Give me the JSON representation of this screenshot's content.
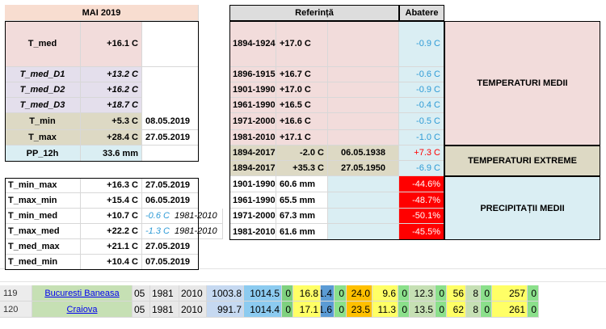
{
  "left": {
    "header": "MAI 2019",
    "rows": [
      {
        "label": "T_med",
        "value": "+16.1 C",
        "extra": ""
      },
      {
        "label": "T_med_D1",
        "value": "+13.2 C",
        "extra": ""
      },
      {
        "label": "T_med_D2",
        "value": "+16.2 C",
        "extra": ""
      },
      {
        "label": "T_med_D3",
        "value": "+18.7 C",
        "extra": ""
      },
      {
        "label": "T_min",
        "value": "+5.3 C",
        "extra": "08.05.2019"
      },
      {
        "label": "T_max",
        "value": "+28.4 C",
        "extra": "27.05.2019"
      },
      {
        "label": "PP_12h",
        "value": "33.6 mm",
        "extra": ""
      }
    ]
  },
  "left2": {
    "rows": [
      {
        "label": "T_min_max",
        "value": "+16.3 C",
        "extra": "27.05.2019",
        "extra2": ""
      },
      {
        "label": "T_max_min",
        "value": "+15.4 C",
        "extra": "06.05.2019",
        "extra2": ""
      },
      {
        "label": "T_min_med",
        "value": "+10.7 C",
        "extra": "-0.6 C",
        "extra2": "1981-2010"
      },
      {
        "label": "T_max_med",
        "value": "+22.2 C",
        "extra": "-1.3 C",
        "extra2": "1981-2010"
      },
      {
        "label": "T_med_max",
        "value": "+21.1 C",
        "extra": "27.05.2019",
        "extra2": ""
      },
      {
        "label": "T_med_min",
        "value": "+10.4 C",
        "extra": "07.05.2019",
        "extra2": ""
      }
    ]
  },
  "right": {
    "header_ref": "Referință",
    "header_abat": "Abatere",
    "rows_medii": [
      {
        "period": "1894-1924",
        "value": "+17.0 C",
        "abat": "-0.9 C"
      },
      {
        "period": "1896-1915",
        "value": "+16.7 C",
        "abat": "-0.6 C"
      },
      {
        "period": "1901-1990",
        "value": "+17.0 C",
        "abat": "-0.9 C"
      },
      {
        "period": "1961-1990",
        "value": "+16.5 C",
        "abat": "-0.4 C"
      },
      {
        "period": "1971-2000",
        "value": "+16.6 C",
        "abat": "-0.5 C"
      },
      {
        "period": "1981-2010",
        "value": "+17.1 C",
        "abat": "-1.0 C"
      }
    ],
    "rows_extreme": [
      {
        "period": "1894-2017",
        "value": "-2.0 C",
        "date": "06.05.1938",
        "abat": "+7.3 C"
      },
      {
        "period": "1894-2017",
        "value": "+35.3 C",
        "date": "27.05.1950",
        "abat": "-6.9 C"
      }
    ],
    "rows_precip": [
      {
        "period": "1901-1990",
        "value": "60.6 mm",
        "abat": "-44.6%"
      },
      {
        "period": "1961-1990",
        "value": "65.5 mm",
        "abat": "-48.7%"
      },
      {
        "period": "1971-2000",
        "value": "67.3 mm",
        "abat": "-50.1%"
      },
      {
        "period": "1981-2010",
        "value": "61.6 mm",
        "abat": "-45.5%"
      }
    ],
    "label_medii": "TEMPERATURI MEDII",
    "label_extreme": "TEMPERATURI EXTREME",
    "label_precip": "PRECIPITAȚII MEDII"
  },
  "bottom": {
    "rows": [
      {
        "num": "119",
        "station": "Bucuresti Baneasa",
        "cols": [
          "05",
          "1981",
          "2010",
          "1003.8",
          "1014.5",
          "0",
          "16.8",
          "1.4",
          "0",
          "24.0",
          "9.6",
          "0",
          "12.3",
          "0",
          "56",
          "8",
          "0",
          "257",
          "0"
        ]
      },
      {
        "num": "120",
        "station": "Craiova",
        "cols": [
          "05",
          "1981",
          "2010",
          "991.7",
          "1014.4",
          "0",
          "17.1",
          "1.6",
          "0",
          "23.5",
          "11.3",
          "0",
          "13.5",
          "0",
          "62",
          "8",
          "0",
          "261",
          "0"
        ]
      }
    ],
    "colors": [
      "#e8e8e8",
      "#e8e8e8",
      "#e8e8e8",
      "#c6d9f1",
      "#8ccbf0",
      "#7fd17f",
      "#ffff66",
      "#5b9bd5",
      "#8be08b",
      "#ffc000",
      "#ffff66",
      "#8be08b",
      "#c6e0b4",
      "#8be08b",
      "#ffff66",
      "#c6e0b4",
      "#8be08b",
      "#ffff66",
      "#8be08b"
    ]
  }
}
